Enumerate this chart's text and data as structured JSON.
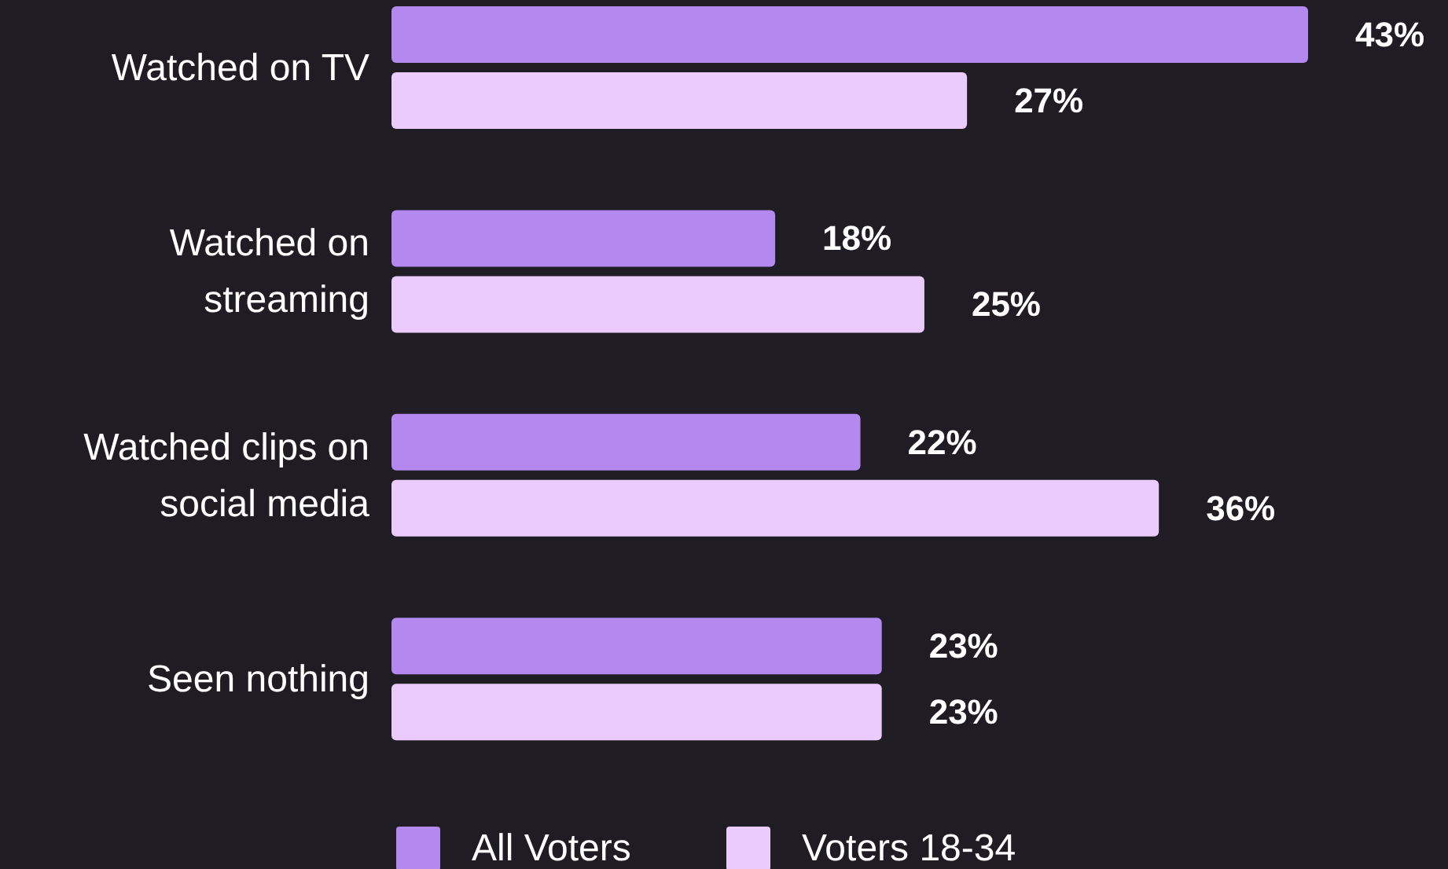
{
  "chart_data": {
    "type": "bar",
    "orientation": "horizontal",
    "categories": [
      "Watched on TV",
      "Watched on streaming",
      "Watched clips on social media",
      "Seen nothing"
    ],
    "series": [
      {
        "name": "All Voters",
        "color": "#b388ef",
        "values": [
          43,
          18,
          22,
          23
        ],
        "value_labels": [
          "43%",
          "18%",
          "22%",
          "23%"
        ]
      },
      {
        "name": "Voters 18-34",
        "color": "#ebcbfb",
        "values": [
          27,
          25,
          36,
          23
        ],
        "value_labels": [
          "27%",
          "25%",
          "36%",
          "23%"
        ]
      }
    ],
    "legend": "bottom"
  }
}
